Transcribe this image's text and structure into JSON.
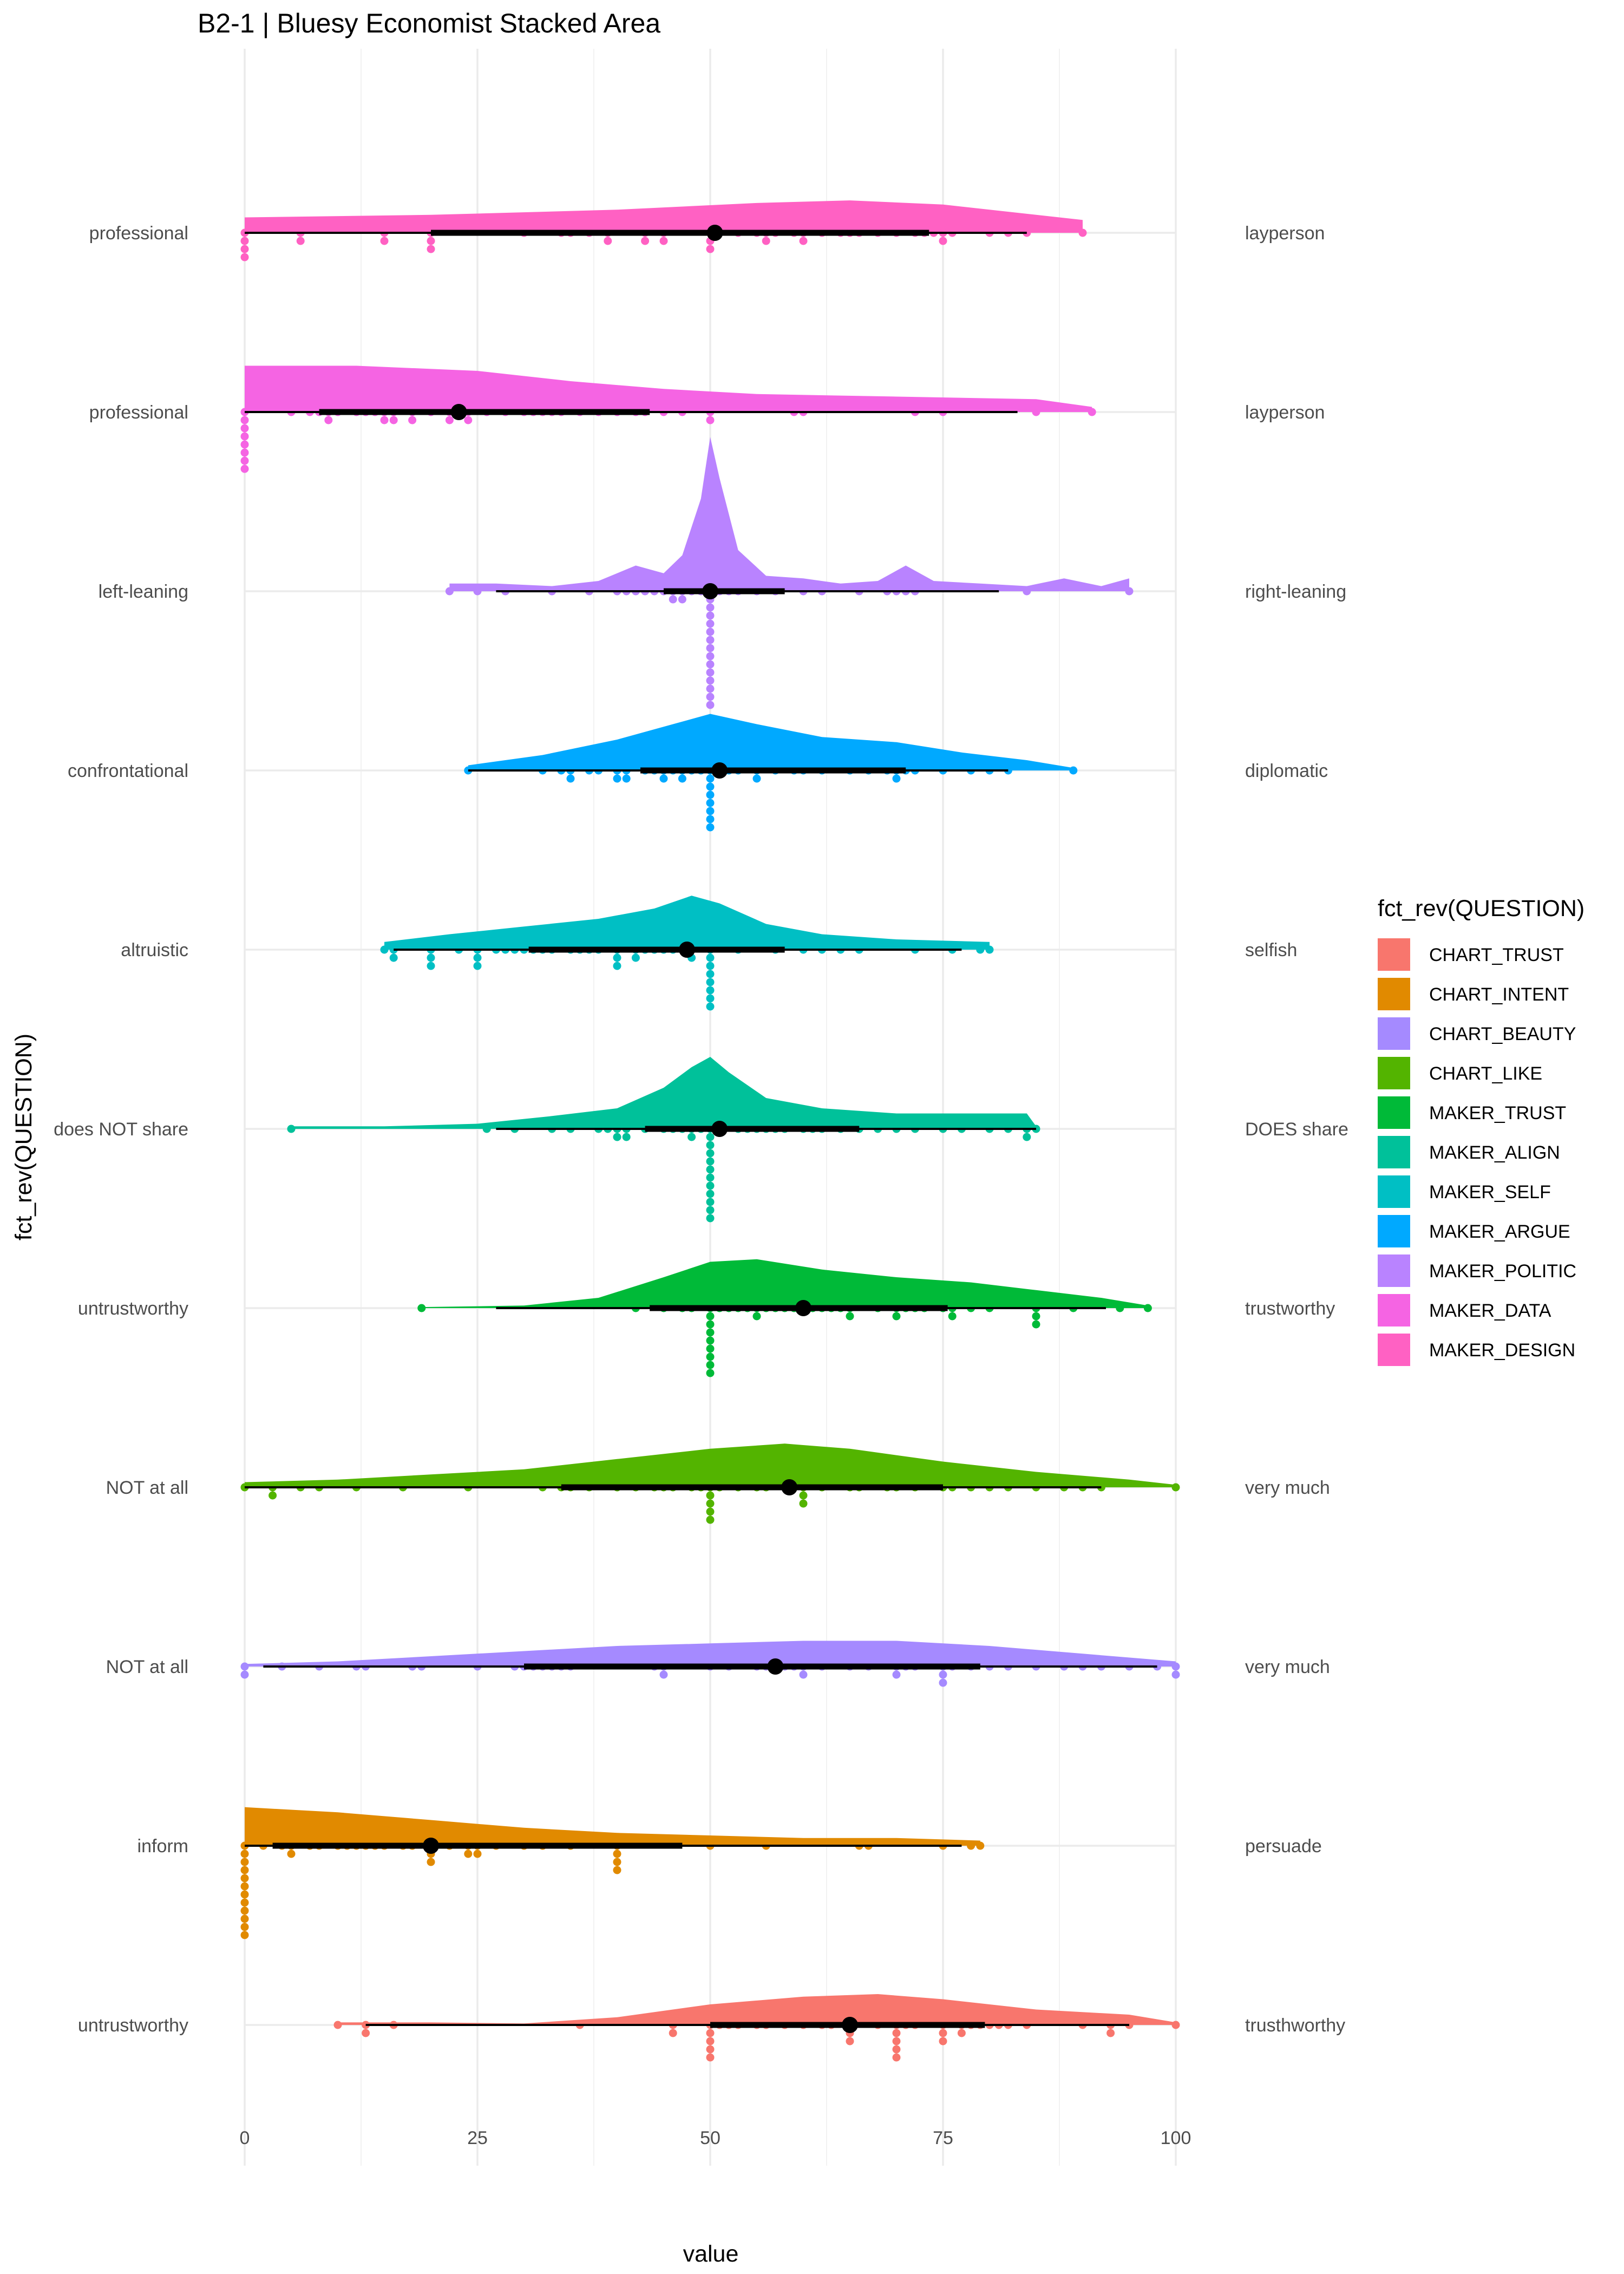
{
  "chart_data": {
    "type": "raincloud",
    "title": "B2-1 | Bluesy Economist Stacked Area",
    "xlabel": "value",
    "ylabel": "fct_rev(QUESTION)",
    "xlim": [
      0,
      100
    ],
    "x_ticks": [
      "0",
      "25",
      "50",
      "75",
      "100"
    ],
    "grid": true,
    "legend": {
      "title": "fct_rev(QUESTION)",
      "position": "right",
      "entries": [
        "CHART_TRUST",
        "CHART_INTENT",
        "CHART_BEAUTY",
        "CHART_LIKE",
        "MAKER_TRUST",
        "MAKER_ALIGN",
        "MAKER_SELF",
        "MAKER_ARGUE",
        "MAKER_POLITIC",
        "MAKER_DATA",
        "MAKER_DESIGN"
      ]
    },
    "series": [
      {
        "name": "MAKER_DESIGN",
        "color": "#FF61C3",
        "left_label": "professional",
        "right_label": "layperson",
        "mean": 50.5,
        "q1": 20,
        "q3": 73.5,
        "w_lo": 0,
        "w_hi": 84,
        "density": [
          [
            0,
            3
          ],
          [
            20,
            3.5
          ],
          [
            40,
            4.5
          ],
          [
            55,
            5.8
          ],
          [
            65,
            6.3
          ],
          [
            75,
            5.5
          ],
          [
            85,
            3.5
          ],
          [
            90,
            2.5
          ]
        ],
        "points": [
          0,
          0,
          0,
          0,
          6,
          6,
          15,
          15,
          20,
          20,
          20,
          30,
          34,
          35,
          37,
          39,
          39,
          43,
          43,
          45,
          45,
          50,
          50,
          50,
          51,
          53,
          55,
          56,
          56,
          57,
          59,
          60,
          60,
          62,
          64,
          65,
          66,
          68,
          70,
          72,
          73,
          74,
          75,
          75,
          76,
          80,
          82,
          84,
          90
        ]
      },
      {
        "name": "MAKER_DATA",
        "color": "#F564E3",
        "left_label": "professional",
        "right_label": "layperson",
        "mean": 23,
        "q1": 8,
        "q3": 43.5,
        "w_lo": 0,
        "w_hi": 83,
        "density": [
          [
            0,
            9
          ],
          [
            12,
            9
          ],
          [
            25,
            8
          ],
          [
            35,
            6
          ],
          [
            45,
            4.5
          ],
          [
            55,
            3.5
          ],
          [
            70,
            3
          ],
          [
            85,
            2.5
          ],
          [
            91,
            1
          ]
        ],
        "points": [
          0,
          0,
          0,
          0,
          0,
          0,
          0,
          0,
          5,
          7,
          8,
          9,
          9,
          10,
          12,
          13,
          14,
          15,
          15,
          16,
          16,
          18,
          18,
          20,
          22,
          22,
          23,
          24,
          24,
          26,
          28,
          30,
          31,
          32,
          33,
          34,
          36,
          38,
          40,
          42,
          43,
          45,
          47,
          50,
          50,
          59,
          60,
          72,
          75,
          85,
          91
        ]
      },
      {
        "name": "MAKER_POLITIC",
        "color": "#B983FF",
        "left_label": "left-leaning",
        "right_label": "right-leaning",
        "mean": 50,
        "q1": 45,
        "q3": 58,
        "w_lo": 27,
        "w_hi": 81,
        "density": [
          [
            22,
            1.5
          ],
          [
            27,
            1.5
          ],
          [
            33,
            1
          ],
          [
            38,
            2
          ],
          [
            42,
            5
          ],
          [
            45,
            3.5
          ],
          [
            47,
            7
          ],
          [
            49,
            18
          ],
          [
            50,
            30
          ],
          [
            51,
            22
          ],
          [
            53,
            8
          ],
          [
            56,
            3
          ],
          [
            60,
            2.5
          ],
          [
            64,
            1.5
          ],
          [
            68,
            2
          ],
          [
            71,
            5
          ],
          [
            74,
            2
          ],
          [
            79,
            1.5
          ],
          [
            84,
            1
          ],
          [
            88,
            2.5
          ],
          [
            92,
            1
          ],
          [
            95,
            2.5
          ]
        ],
        "points": [
          22,
          25,
          28,
          33,
          37,
          40,
          41,
          42,
          43,
          44,
          45,
          46,
          46,
          47,
          47,
          48,
          49,
          50,
          50,
          50,
          50,
          50,
          50,
          50,
          50,
          50,
          50,
          50,
          50,
          50,
          50,
          50,
          51,
          52,
          53,
          55,
          57,
          60,
          62,
          66,
          69,
          70,
          71,
          72,
          84,
          95
        ]
      },
      {
        "name": "MAKER_ARGUE",
        "color": "#00A9FF",
        "left_label": "confrontational",
        "right_label": "diplomatic",
        "mean": 51,
        "q1": 42.5,
        "q3": 71,
        "w_lo": 24,
        "w_hi": 82,
        "density": [
          [
            24,
            1
          ],
          [
            32,
            3
          ],
          [
            40,
            6
          ],
          [
            46,
            9
          ],
          [
            50,
            11
          ],
          [
            55,
            9
          ],
          [
            62,
            6.5
          ],
          [
            70,
            5.5
          ],
          [
            77,
            3.5
          ],
          [
            84,
            2
          ],
          [
            89,
            0.5
          ]
        ],
        "points": [
          24,
          32,
          34,
          35,
          35,
          37,
          38,
          40,
          40,
          41,
          41,
          43,
          44,
          45,
          45,
          46,
          47,
          47,
          48,
          49,
          50,
          50,
          50,
          50,
          50,
          50,
          50,
          50,
          51,
          52,
          53,
          55,
          55,
          57,
          59,
          60,
          62,
          65,
          67,
          69,
          70,
          70,
          71,
          72,
          75,
          78,
          80,
          82,
          89
        ]
      },
      {
        "name": "MAKER_SELF",
        "color": "#00BFC4",
        "left_label": "altruistic",
        "right_label": "selfish",
        "mean": 47.5,
        "q1": 30.5,
        "q3": 58,
        "w_lo": 16,
        "w_hi": 77,
        "density": [
          [
            15,
            1.5
          ],
          [
            22,
            3
          ],
          [
            30,
            4.5
          ],
          [
            38,
            6
          ],
          [
            44,
            8
          ],
          [
            48,
            10.5
          ],
          [
            51,
            9
          ],
          [
            56,
            5
          ],
          [
            62,
            3
          ],
          [
            70,
            2
          ],
          [
            80,
            1.5
          ]
        ],
        "points": [
          15,
          16,
          16,
          20,
          20,
          20,
          23,
          25,
          25,
          25,
          27,
          28,
          29,
          30,
          31,
          32,
          33,
          35,
          36,
          37,
          38,
          40,
          40,
          40,
          42,
          42,
          43,
          44,
          45,
          46,
          47,
          48,
          48,
          50,
          50,
          50,
          50,
          50,
          50,
          50,
          50,
          53,
          57,
          60,
          62,
          64,
          66,
          72,
          76,
          79,
          80
        ]
      },
      {
        "name": "MAKER_ALIGN",
        "color": "#00C19A",
        "left_label": "does NOT share",
        "right_label": "DOES share",
        "mean": 51,
        "q1": 43,
        "q3": 66,
        "w_lo": 27,
        "w_hi": 85,
        "density": [
          [
            5,
            0.5
          ],
          [
            15,
            0.5
          ],
          [
            25,
            1
          ],
          [
            33,
            2.5
          ],
          [
            40,
            4
          ],
          [
            45,
            8
          ],
          [
            48,
            12
          ],
          [
            50,
            14
          ],
          [
            52,
            11
          ],
          [
            56,
            6
          ],
          [
            62,
            4
          ],
          [
            70,
            3
          ],
          [
            78,
            3
          ],
          [
            84,
            3
          ],
          [
            85,
            0.5
          ]
        ],
        "points": [
          5,
          26,
          29,
          33,
          35,
          38,
          39,
          40,
          40,
          41,
          41,
          43,
          45,
          46,
          47,
          48,
          48,
          49,
          50,
          50,
          50,
          50,
          50,
          50,
          50,
          50,
          50,
          50,
          50,
          50,
          53,
          54,
          55,
          56,
          57,
          58,
          60,
          61,
          62,
          64,
          66,
          68,
          70,
          72,
          75,
          77,
          80,
          82,
          84,
          84,
          85
        ]
      },
      {
        "name": "MAKER_TRUST",
        "color": "#00BA38",
        "left_label": "untrustworthy",
        "right_label": "trustworthy",
        "mean": 60,
        "q1": 43.5,
        "q3": 75.5,
        "w_lo": 27,
        "w_hi": 92.5,
        "density": [
          [
            19,
            0.2
          ],
          [
            30,
            0.5
          ],
          [
            38,
            2
          ],
          [
            45,
            6
          ],
          [
            50,
            9
          ],
          [
            55,
            9.5
          ],
          [
            62,
            7.5
          ],
          [
            70,
            6
          ],
          [
            78,
            5
          ],
          [
            85,
            3.5
          ],
          [
            92,
            2
          ],
          [
            97,
            0.5
          ]
        ],
        "points": [
          19,
          42,
          45,
          47,
          48,
          50,
          50,
          50,
          50,
          50,
          50,
          50,
          50,
          50,
          51,
          52,
          53,
          54,
          55,
          55,
          56,
          57,
          58,
          59,
          60,
          61,
          62,
          63,
          64,
          65,
          65,
          68,
          70,
          70,
          71,
          72,
          73,
          75,
          76,
          76,
          78,
          80,
          85,
          85,
          85,
          89,
          94,
          97
        ]
      },
      {
        "name": "CHART_LIKE",
        "color": "#53B400",
        "left_label": "NOT at all",
        "right_label": "very much",
        "mean": 58.5,
        "q1": 34,
        "q3": 75,
        "w_lo": 0,
        "w_hi": 92,
        "density": [
          [
            0,
            1
          ],
          [
            10,
            1.5
          ],
          [
            20,
            2.5
          ],
          [
            30,
            3.5
          ],
          [
            40,
            5.5
          ],
          [
            50,
            7.5
          ],
          [
            58,
            8.5
          ],
          [
            65,
            7.5
          ],
          [
            75,
            5
          ],
          [
            85,
            3
          ],
          [
            95,
            1.5
          ],
          [
            100,
            0.5
          ]
        ],
        "points": [
          0,
          3,
          3,
          6,
          8,
          12,
          17,
          24,
          32,
          34,
          35,
          37,
          40,
          42,
          44,
          45,
          46,
          48,
          49,
          50,
          50,
          50,
          50,
          50,
          51,
          53,
          55,
          56,
          58,
          60,
          60,
          60,
          62,
          65,
          66,
          69,
          70,
          72,
          75,
          76,
          78,
          80,
          82,
          85,
          88,
          90,
          92,
          100
        ]
      },
      {
        "name": "CHART_BEAUTY",
        "color": "#A58AFF",
        "left_label": "NOT at all",
        "right_label": "very much",
        "mean": 57,
        "q1": 30,
        "q3": 79,
        "w_lo": 2,
        "w_hi": 98,
        "density": [
          [
            0,
            0.5
          ],
          [
            10,
            1
          ],
          [
            20,
            2
          ],
          [
            30,
            3
          ],
          [
            40,
            4
          ],
          [
            50,
            4.5
          ],
          [
            60,
            5
          ],
          [
            70,
            5
          ],
          [
            80,
            4
          ],
          [
            90,
            2.5
          ],
          [
            100,
            1
          ]
        ],
        "points": [
          0,
          0,
          4,
          8,
          12,
          13,
          18,
          19,
          25,
          29,
          30,
          31,
          32,
          33,
          34,
          35,
          44,
          45,
          45,
          50,
          52,
          55,
          56,
          57,
          58,
          59,
          60,
          60,
          62,
          65,
          67,
          70,
          70,
          71,
          72,
          75,
          75,
          75,
          76,
          78,
          80,
          82,
          85,
          88,
          90,
          92,
          95,
          98,
          100,
          100
        ]
      },
      {
        "name": "CHART_INTENT",
        "color": "#E18A00",
        "left_label": "inform",
        "right_label": "persuade",
        "mean": 20,
        "q1": 3,
        "q3": 47,
        "w_lo": 0,
        "w_hi": 77,
        "density": [
          [
            0,
            7.5
          ],
          [
            10,
            6.5
          ],
          [
            20,
            5
          ],
          [
            30,
            3.5
          ],
          [
            40,
            2.5
          ],
          [
            50,
            2
          ],
          [
            60,
            1.5
          ],
          [
            70,
            1.5
          ],
          [
            79,
            1
          ]
        ],
        "points": [
          0,
          0,
          0,
          0,
          0,
          0,
          0,
          0,
          0,
          0,
          0,
          0,
          2,
          4,
          5,
          5,
          7,
          8,
          10,
          11,
          12,
          13,
          14,
          15,
          17,
          18,
          20,
          20,
          20,
          22,
          24,
          24,
          25,
          25,
          27,
          30,
          32,
          35,
          40,
          40,
          40,
          40,
          50,
          56,
          66,
          67,
          75,
          78,
          79
        ]
      },
      {
        "name": "CHART_TRUST",
        "color": "#F8766D",
        "left_label": "untrustworthy",
        "right_label": "trusthworthy",
        "mean": 65,
        "q1": 50,
        "q3": 79.5,
        "w_lo": 13,
        "w_hi": 95,
        "density": [
          [
            10,
            0.5
          ],
          [
            20,
            0.5
          ],
          [
            30,
            0.3
          ],
          [
            40,
            1.5
          ],
          [
            50,
            4
          ],
          [
            60,
            5.5
          ],
          [
            68,
            6
          ],
          [
            75,
            5
          ],
          [
            85,
            3
          ],
          [
            95,
            2
          ],
          [
            100,
            0.5
          ]
        ],
        "points": [
          10,
          13,
          13,
          16,
          36,
          46,
          46,
          50,
          50,
          50,
          50,
          50,
          51,
          52,
          53,
          55,
          56,
          58,
          60,
          62,
          63,
          65,
          65,
          65,
          68,
          70,
          70,
          70,
          70,
          70,
          71,
          72,
          75,
          75,
          75,
          77,
          77,
          78,
          79,
          80,
          81,
          82,
          84,
          90,
          93,
          93,
          95,
          100
        ]
      }
    ]
  }
}
